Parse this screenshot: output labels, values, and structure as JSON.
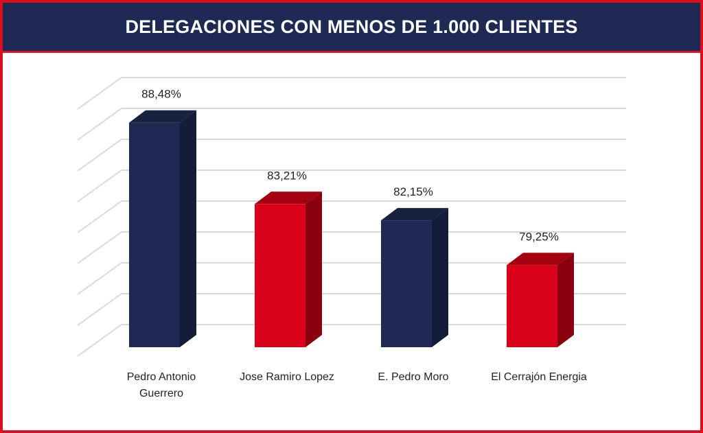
{
  "chart_data": {
    "type": "bar",
    "title": "DELEGACIONES CON MENOS DE 1.000 CLIENTES",
    "categories": [
      [
        "Pedro Antonio",
        "Guerrero"
      ],
      [
        "Jose Ramiro Lopez"
      ],
      [
        "E. Pedro Moro"
      ],
      [
        "El Cerrajón Energia"
      ]
    ],
    "values": [
      88.48,
      83.21,
      82.15,
      79.25
    ],
    "data_labels": [
      "88,48%",
      "83,21%",
      "82,15%",
      "79,25%"
    ],
    "colors": [
      "#1e2a54",
      "#d9001a",
      "#1e2a54",
      "#d9001a"
    ],
    "side_colors": [
      "#141c3a",
      "#8a0010",
      "#141c3a",
      "#8a0010"
    ],
    "top_colors": [
      "#18223f",
      "#a5000f",
      "#18223f",
      "#a5000f"
    ],
    "ylim": [
      74.6,
      90.6
    ],
    "ystep": 2,
    "grid": true,
    "xlabel": "",
    "ylabel": ""
  }
}
